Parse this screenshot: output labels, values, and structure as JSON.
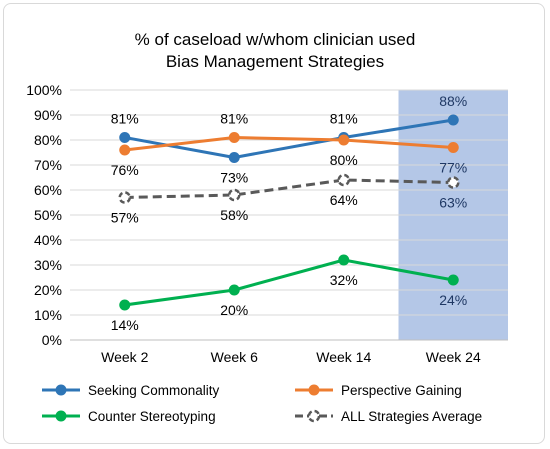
{
  "chart_data": {
    "type": "line",
    "title": [
      "% of caseload w/whom clinician used",
      "Bias Management Strategies"
    ],
    "categories": [
      "Week 2",
      "Week 6",
      "Week 14",
      "Week 24"
    ],
    "ylim": [
      0,
      100
    ],
    "yticks": [
      "0%",
      "10%",
      "20%",
      "30%",
      "40%",
      "50%",
      "60%",
      "70%",
      "80%",
      "90%",
      "100%"
    ],
    "highlight_category": "Week 24",
    "highlight_color": "#b4c7e7",
    "grid": true,
    "legend_position": "bottom",
    "series": [
      {
        "name": "Seeking Commonality",
        "values": [
          81,
          73,
          81,
          88
        ],
        "labels": [
          "81%",
          "73%",
          "81%",
          "88%"
        ],
        "label_pos": [
          "above",
          "below",
          "above",
          "above"
        ],
        "color": "#2e75b6",
        "style": "solid"
      },
      {
        "name": "Perspective Gaining",
        "values": [
          76,
          81,
          80,
          77
        ],
        "labels": [
          "76%",
          "81%",
          "80%",
          "77%"
        ],
        "label_pos": [
          "below",
          "above",
          "below",
          "below"
        ],
        "color": "#ed7d31",
        "style": "solid"
      },
      {
        "name": "Counter Stereotyping",
        "values": [
          14,
          20,
          32,
          24
        ],
        "labels": [
          "14%",
          "20%",
          "32%",
          "24%"
        ],
        "label_pos": [
          "below",
          "below",
          "below",
          "below"
        ],
        "color": "#00b050",
        "style": "solid"
      },
      {
        "name": "ALL Strategies Average",
        "values": [
          57,
          58,
          64,
          63
        ],
        "labels": [
          "57%",
          "58%",
          "64%",
          "63%"
        ],
        "label_pos": [
          "below",
          "below",
          "below",
          "below"
        ],
        "color": "#595959",
        "style": "dashed"
      }
    ]
  }
}
